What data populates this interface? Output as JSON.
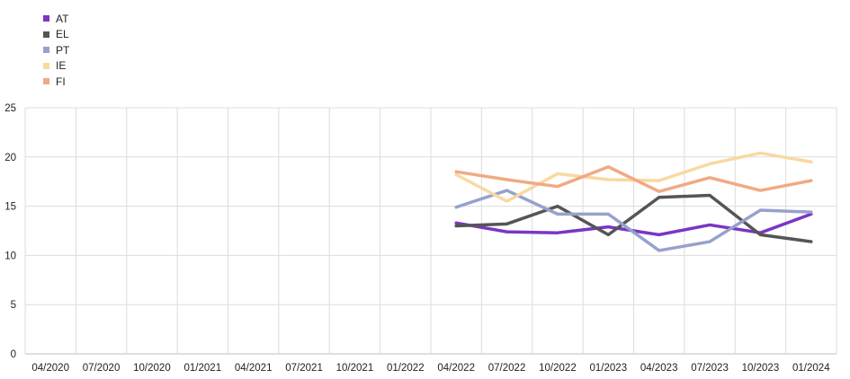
{
  "chart_data": {
    "type": "line",
    "title": "",
    "xlabel": "",
    "ylabel": "",
    "ylim": [
      0,
      25
    ],
    "yticks": [
      0,
      5,
      10,
      15,
      20,
      25
    ],
    "grid": true,
    "legend_position": "top-left",
    "categories": [
      "04/2020",
      "07/2020",
      "10/2020",
      "01/2021",
      "04/2021",
      "07/2021",
      "10/2021",
      "01/2022",
      "04/2022",
      "07/2022",
      "10/2022",
      "01/2023",
      "04/2023",
      "07/2023",
      "10/2023",
      "01/2024"
    ],
    "series": [
      {
        "name": "AT",
        "color": "#7b35c3",
        "values": [
          null,
          null,
          null,
          null,
          null,
          null,
          null,
          null,
          13.3,
          12.4,
          12.3,
          12.9,
          12.1,
          13.1,
          12.3,
          14.2
        ]
      },
      {
        "name": "EL",
        "color": "#555555",
        "values": [
          null,
          null,
          null,
          null,
          null,
          null,
          null,
          null,
          13.0,
          13.2,
          15.0,
          12.1,
          15.9,
          16.1,
          12.1,
          11.4
        ]
      },
      {
        "name": "PT",
        "color": "#97a1cd",
        "values": [
          null,
          null,
          null,
          null,
          null,
          null,
          null,
          null,
          14.9,
          16.6,
          14.2,
          14.2,
          10.5,
          11.4,
          14.6,
          14.4
        ]
      },
      {
        "name": "IE",
        "color": "#f8d9a0",
        "values": [
          null,
          null,
          null,
          null,
          null,
          null,
          null,
          null,
          18.2,
          15.5,
          18.3,
          17.7,
          17.6,
          19.3,
          20.4,
          19.5
        ]
      },
      {
        "name": "FI",
        "color": "#f0aa83",
        "values": [
          null,
          null,
          null,
          null,
          null,
          null,
          null,
          null,
          18.5,
          17.7,
          17.0,
          19.0,
          16.5,
          17.9,
          16.6,
          17.6
        ]
      }
    ]
  }
}
